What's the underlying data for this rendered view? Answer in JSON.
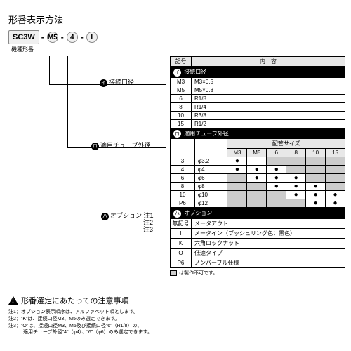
{
  "title": "形番表示方法",
  "model": {
    "base": "SC3W",
    "p1": "M5",
    "p2": "4",
    "p3": "I",
    "baseLabel": "機種形番"
  },
  "lines": {
    "l1": {
      "num": "イ",
      "label": "接続口径"
    },
    "l2": {
      "num": "ロ",
      "label": "適用チューブ外径"
    },
    "l3": {
      "num": "ハ",
      "label": "オプション",
      "sub": [
        "注1",
        "注2",
        "注3"
      ]
    }
  },
  "t0": {
    "h1": "記号",
    "h2": "内　容"
  },
  "t1": {
    "title": "接続口径",
    "rows": [
      [
        "M3",
        "M3×0.5"
      ],
      [
        "M5",
        "M5×0.8"
      ],
      [
        "6",
        "R1/8"
      ],
      [
        "8",
        "R1/4"
      ],
      [
        "10",
        "R3/8"
      ],
      [
        "15",
        "R1/2"
      ]
    ]
  },
  "t2": {
    "title": "適用チューブ外径",
    "colhdr": "配管サイズ",
    "cols": [
      "M3",
      "M5",
      "6",
      "8",
      "10",
      "15"
    ],
    "rows": [
      {
        "k": "3",
        "l": "φ3.2",
        "d": [
          1,
          0,
          0,
          0,
          0,
          0
        ],
        "g": [
          0,
          0,
          1,
          1,
          1,
          1
        ]
      },
      {
        "k": "4",
        "l": "φ4",
        "d": [
          1,
          1,
          1,
          0,
          0,
          0
        ],
        "g": [
          0,
          0,
          0,
          1,
          1,
          1
        ]
      },
      {
        "k": "6",
        "l": "φ6",
        "d": [
          0,
          1,
          1,
          1,
          0,
          0
        ],
        "g": [
          1,
          0,
          0,
          0,
          1,
          1
        ]
      },
      {
        "k": "8",
        "l": "φ8",
        "d": [
          0,
          0,
          1,
          1,
          1,
          0
        ],
        "g": [
          1,
          1,
          0,
          0,
          0,
          1
        ]
      },
      {
        "k": "10",
        "l": "φ10",
        "d": [
          0,
          0,
          0,
          1,
          1,
          1
        ],
        "g": [
          1,
          1,
          1,
          0,
          0,
          0
        ]
      },
      {
        "k": "P6",
        "l": "φ12",
        "d": [
          0,
          0,
          0,
          0,
          1,
          1
        ],
        "g": [
          1,
          1,
          1,
          1,
          0,
          0
        ]
      }
    ]
  },
  "t3": {
    "title": "オプション",
    "rows": [
      [
        "無記号",
        "メータアウト"
      ],
      [
        "I",
        "メータイン（ブッシュリング色：黒色）"
      ],
      [
        "K",
        "六角ロックナット"
      ],
      [
        "O",
        "低速タイプ"
      ],
      [
        "P6",
        "ノンバーブル仕様"
      ]
    ]
  },
  "legend": "は製作不可です。",
  "warning": "形番選定にあたっての注意事項",
  "notes": [
    "注1：オプション表示順序は、アルファベット順とします。",
    "注2：\"K\"は、接続口径M3、M5のみ選定できます。",
    "注3：\"O\"は、接続口径M3、M5及び接続口径\"6\"（R1/8）の、",
    "　　　適用チューブ外径\"4\"（φ4）、\"6\"（φ6）のみ選定できます。"
  ]
}
